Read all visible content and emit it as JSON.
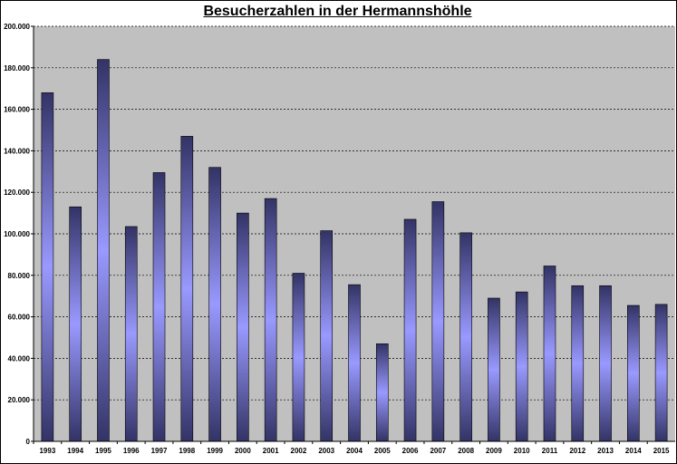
{
  "chart_data": {
    "type": "bar",
    "title": "Besucherzahlen in der Hermannshöhle",
    "xlabel": "",
    "ylabel": "",
    "categories": [
      "1993",
      "1994",
      "1995",
      "1996",
      "1997",
      "1998",
      "1999",
      "2000",
      "2001",
      "2002",
      "2003",
      "2004",
      "2005",
      "2006",
      "2007",
      "2008",
      "2009",
      "2010",
      "2011",
      "2012",
      "2013",
      "2014",
      "2015"
    ],
    "values": [
      168000,
      113000,
      184000,
      103500,
      129500,
      147000,
      132000,
      110000,
      117000,
      81000,
      101500,
      75500,
      47000,
      107000,
      115500,
      100500,
      69000,
      72000,
      84500,
      75000,
      75000,
      65500,
      66000
    ],
    "ylim": [
      0,
      200000
    ],
    "yticks": [
      "0",
      "20.000",
      "40.000",
      "60.000",
      "80.000",
      "100.000",
      "120.000",
      "140.000",
      "160.000",
      "180.000",
      "200.000"
    ],
    "grid": true,
    "legend": "none",
    "colors": {
      "plot_bg": "#c0c0c0",
      "bar_edge": "#333366",
      "bar_center": "#9999ff",
      "grid": "#000000"
    }
  }
}
